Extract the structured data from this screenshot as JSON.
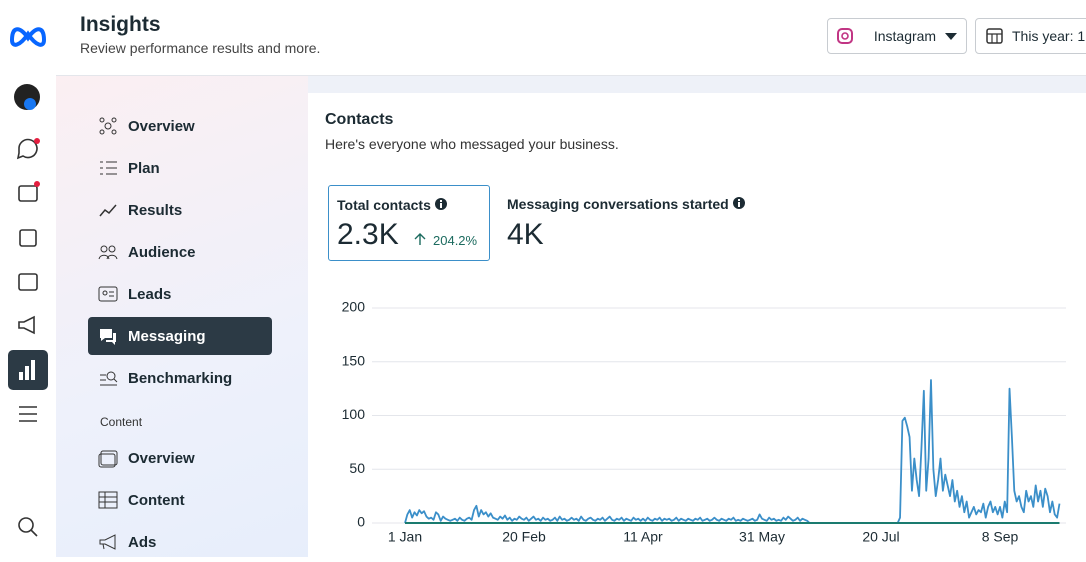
{
  "header": {
    "title": "Insights",
    "subtitle": "Review performance results and more.",
    "platform": "Instagram",
    "date_range": "This year: 1"
  },
  "nav": {
    "items": [
      "Overview",
      "Plan",
      "Results",
      "Audience",
      "Leads",
      "Messaging",
      "Benchmarking"
    ]
  },
  "content_section": {
    "title": "Content",
    "items": [
      "Overview",
      "Content",
      "Ads"
    ]
  },
  "card": {
    "title": "Contacts",
    "description": "Here's everyone who messaged your business.",
    "metrics": [
      {
        "label": "Total contacts",
        "value": "2.3K",
        "change": "204.2%"
      },
      {
        "label": "Messaging conversations started",
        "value": "4K"
      }
    ]
  },
  "chart_data": {
    "type": "line",
    "color": "#3b8fc9",
    "grid": true,
    "ylim": [
      0,
      200
    ],
    "yticks": [
      0,
      50,
      100,
      150,
      200
    ],
    "categories": [
      "1 Jan",
      null,
      null,
      null,
      null,
      null,
      null,
      null,
      null,
      null,
      null,
      null,
      null,
      null,
      null,
      null,
      null,
      null,
      null,
      null,
      null,
      null,
      null,
      null,
      null,
      null,
      null,
      null,
      null,
      null,
      null,
      null,
      null,
      null,
      null,
      null,
      null,
      null,
      null,
      null,
      null,
      null,
      null,
      null,
      null,
      null,
      null,
      null,
      null,
      null,
      "20 Feb",
      null,
      null,
      null,
      null,
      null,
      null,
      null,
      null,
      null,
      null,
      null,
      null,
      null,
      null,
      null,
      null,
      null,
      null,
      null,
      null,
      null,
      null,
      null,
      null,
      null,
      null,
      null,
      null,
      null,
      null,
      null,
      null,
      null,
      null,
      null,
      null,
      null,
      null,
      null,
      null,
      null,
      null,
      null,
      null,
      null,
      null,
      null,
      null,
      null,
      "11 Apr",
      null,
      null,
      null,
      null,
      null,
      null,
      null,
      null,
      null,
      null,
      null,
      null,
      null,
      null,
      null,
      null,
      null,
      null,
      null,
      null,
      null,
      null,
      null,
      null,
      null,
      null,
      null,
      null,
      null,
      null,
      null,
      null,
      null,
      null,
      null,
      null,
      null,
      null,
      null,
      null,
      null,
      null,
      null,
      null,
      null,
      null,
      null,
      null,
      null,
      "31 May",
      null,
      null,
      null,
      null,
      null,
      null,
      null,
      null,
      null,
      null,
      null,
      null,
      null,
      null,
      null,
      null,
      null,
      null,
      null,
      null,
      null,
      null,
      null,
      null,
      null,
      null,
      null,
      null,
      null,
      null,
      null,
      null,
      null,
      null,
      null,
      null,
      null,
      null,
      null,
      null,
      null,
      null,
      null,
      null,
      null,
      null,
      null,
      null,
      null,
      "20 Jul",
      null,
      null,
      null,
      null,
      null,
      null,
      null,
      null,
      null,
      null,
      null,
      null,
      null,
      null,
      null,
      null,
      null,
      null,
      null,
      null,
      null,
      null,
      null,
      null,
      null,
      null,
      null,
      null,
      null,
      null,
      null,
      null,
      null,
      null,
      null,
      null,
      null,
      null,
      null,
      null,
      null,
      null,
      null,
      null,
      null,
      null,
      null,
      null,
      null,
      "8 Sep",
      null,
      null,
      null,
      null,
      null,
      null,
      null,
      null,
      null,
      null,
      null,
      null,
      null,
      null,
      null,
      null,
      null,
      null,
      null,
      null,
      null,
      null,
      null,
      null,
      null
    ],
    "values": [
      0,
      8,
      12,
      5,
      10,
      7,
      12,
      9,
      11,
      6,
      4,
      5,
      3,
      10,
      8,
      2,
      6,
      4,
      3,
      2,
      3,
      4,
      2,
      5,
      3,
      2,
      4,
      5,
      3,
      12,
      16,
      6,
      12,
      8,
      10,
      6,
      9,
      5,
      4,
      3,
      6,
      4,
      7,
      3,
      5,
      2,
      4,
      3,
      6,
      4,
      3,
      5,
      2,
      4,
      6,
      3,
      4,
      2,
      5,
      3,
      4,
      2,
      3,
      5,
      2,
      6,
      3,
      4,
      2,
      3,
      5,
      3,
      4,
      2,
      6,
      3,
      2,
      4,
      5,
      3,
      2,
      4,
      3,
      5,
      2,
      4,
      6,
      3,
      2,
      4,
      3,
      5,
      2,
      4,
      3,
      2,
      5,
      3,
      4,
      2,
      4,
      2,
      5,
      3,
      2,
      4,
      3,
      5,
      2,
      4,
      3,
      4,
      2,
      3,
      5,
      2,
      4,
      3,
      2,
      4,
      3,
      2,
      4,
      3,
      5,
      2,
      3,
      4,
      2,
      3,
      5,
      3,
      2,
      4,
      3,
      2,
      4,
      3,
      5,
      2,
      3,
      2,
      4,
      3,
      2,
      3,
      4,
      2,
      3,
      8,
      4,
      3,
      2,
      5,
      3,
      4,
      2,
      3,
      2,
      5,
      3,
      6,
      4,
      2,
      3,
      5,
      2,
      4,
      3,
      2,
      0,
      0,
      0,
      0,
      0,
      0,
      0,
      0,
      0,
      0,
      0,
      0,
      0,
      0,
      0,
      0,
      0,
      0,
      0,
      0,
      0,
      0,
      0,
      0,
      0,
      0,
      0,
      0,
      0,
      0,
      0,
      0,
      0,
      0,
      0,
      0,
      0,
      0,
      5,
      95,
      98,
      90,
      80,
      30,
      60,
      40,
      25,
      70,
      123,
      30,
      60,
      133,
      50,
      25,
      40,
      60,
      30,
      45,
      35,
      25,
      40,
      20,
      30,
      15,
      25,
      10,
      20,
      5,
      10,
      15,
      8,
      12,
      10,
      18,
      5,
      15,
      20,
      10,
      15,
      8,
      15,
      5,
      20,
      10,
      125,
      80,
      30,
      20,
      25,
      15,
      10,
      30,
      20,
      25,
      15,
      35,
      20,
      30,
      15,
      32,
      25,
      10,
      20,
      8,
      5,
      18
    ]
  }
}
